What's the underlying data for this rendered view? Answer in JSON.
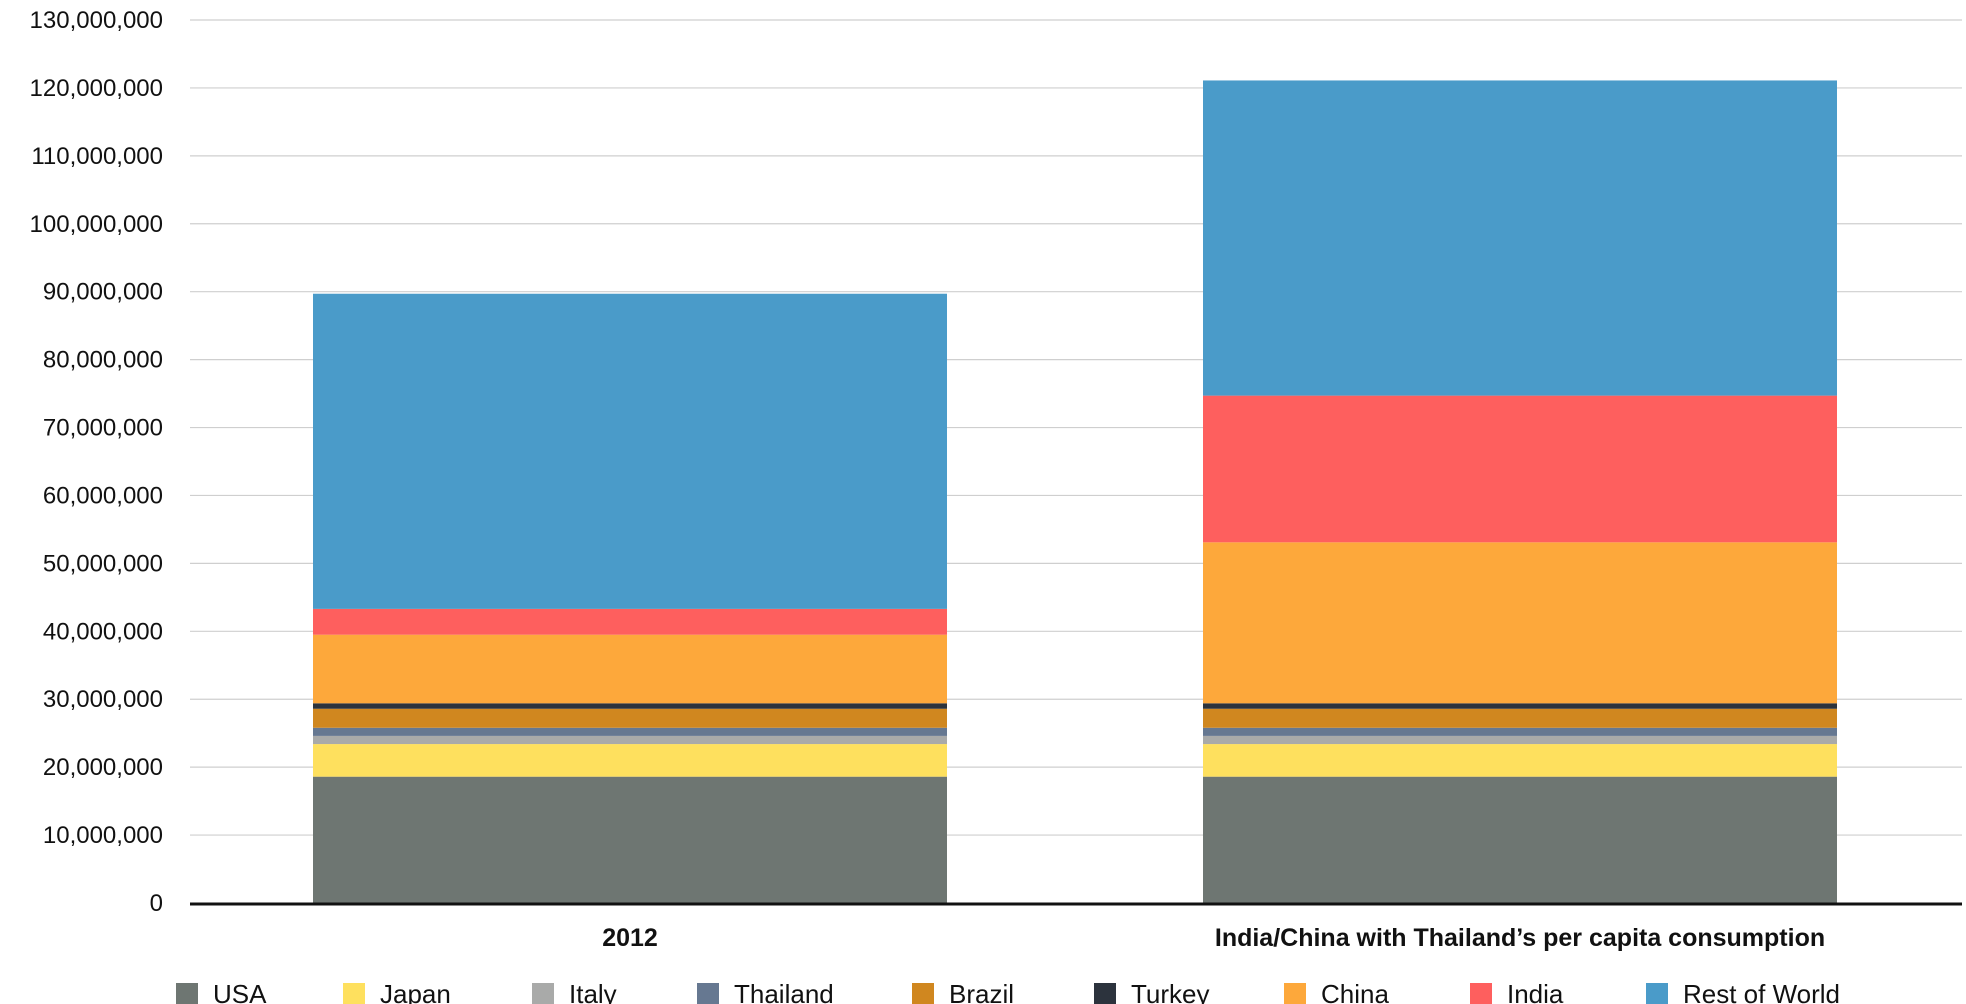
{
  "chart_data": {
    "type": "bar",
    "stacked": true,
    "categories": [
      "2012",
      "India/China with Thailand’s per capita consumption"
    ],
    "series": [
      {
        "name": "USA",
        "color": "#6e7672",
        "values": [
          18600000,
          18600000
        ]
      },
      {
        "name": "Japan",
        "color": "#fee05e",
        "values": [
          4800000,
          4800000
        ]
      },
      {
        "name": "Italy",
        "color": "#a9aaa9",
        "values": [
          1200000,
          1200000
        ]
      },
      {
        "name": "Thailand",
        "color": "#667891",
        "values": [
          1200000,
          1200000
        ]
      },
      {
        "name": "Brazil",
        "color": "#d0871f",
        "values": [
          2800000,
          2800000
        ]
      },
      {
        "name": "Turkey",
        "color": "#2c333d",
        "values": [
          800000,
          800000
        ]
      },
      {
        "name": "China",
        "color": "#fda83b",
        "values": [
          10100000,
          23700000
        ]
      },
      {
        "name": "India",
        "color": "#fe5f5e",
        "values": [
          3800000,
          21600000
        ]
      },
      {
        "name": "Rest of World",
        "color": "#4a9bc9",
        "values": [
          46400000,
          46400000
        ]
      }
    ],
    "yticks": [
      "0",
      "10,000,000",
      "20,000,000",
      "30,000,000",
      "40,000,000",
      "50,000,000",
      "60,000,000",
      "70,000,000",
      "80,000,000",
      "90,000,000",
      "100,000,000",
      "110,000,000",
      "120,000,000",
      "130,000,000"
    ],
    "ylim": [
      0,
      130000000
    ],
    "grid": true,
    "legend_position": "bottom"
  }
}
